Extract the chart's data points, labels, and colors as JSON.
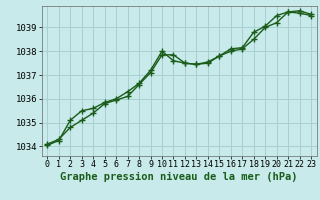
{
  "title": "Graphe pression niveau de la mer (hPa)",
  "background_color": "#c8eaea",
  "grid_color": "#a8d0d0",
  "line_color": "#1a5c1a",
  "marker_color": "#1a5c1a",
  "xlim": [
    -0.5,
    23.5
  ],
  "ylim": [
    1033.6,
    1039.9
  ],
  "yticks": [
    1034,
    1035,
    1036,
    1037,
    1038,
    1039
  ],
  "xticks": [
    0,
    1,
    2,
    3,
    4,
    5,
    6,
    7,
    8,
    9,
    10,
    11,
    12,
    13,
    14,
    15,
    16,
    17,
    18,
    19,
    20,
    21,
    22,
    23
  ],
  "series1_x": [
    0,
    1,
    2,
    3,
    4,
    5,
    6,
    7,
    8,
    9,
    10,
    11,
    12,
    13,
    14,
    15,
    16,
    17,
    18,
    19,
    20,
    21,
    22,
    23
  ],
  "series1_y": [
    1034.1,
    1034.3,
    1034.8,
    1035.1,
    1035.4,
    1035.8,
    1035.95,
    1036.1,
    1036.6,
    1037.1,
    1037.85,
    1037.85,
    1037.5,
    1037.45,
    1037.5,
    1037.8,
    1038.1,
    1038.15,
    1038.8,
    1039.05,
    1039.5,
    1039.65,
    1039.6,
    1039.5
  ],
  "series2_x": [
    0,
    1,
    2,
    3,
    4,
    5,
    6,
    7,
    8,
    9,
    10,
    11,
    12,
    13,
    14,
    15,
    16,
    17,
    18,
    19,
    20,
    21,
    22,
    23
  ],
  "series2_y": [
    1034.05,
    1034.25,
    1035.1,
    1035.5,
    1035.6,
    1035.85,
    1036.0,
    1036.3,
    1036.65,
    1037.2,
    1038.0,
    1037.6,
    1037.5,
    1037.45,
    1037.55,
    1037.8,
    1038.0,
    1038.1,
    1038.5,
    1039.0,
    1039.2,
    1039.65,
    1039.7,
    1039.55
  ],
  "title_fontsize": 7.5,
  "tick_fontsize": 6.5,
  "line_width": 1.0,
  "marker_size": 4
}
